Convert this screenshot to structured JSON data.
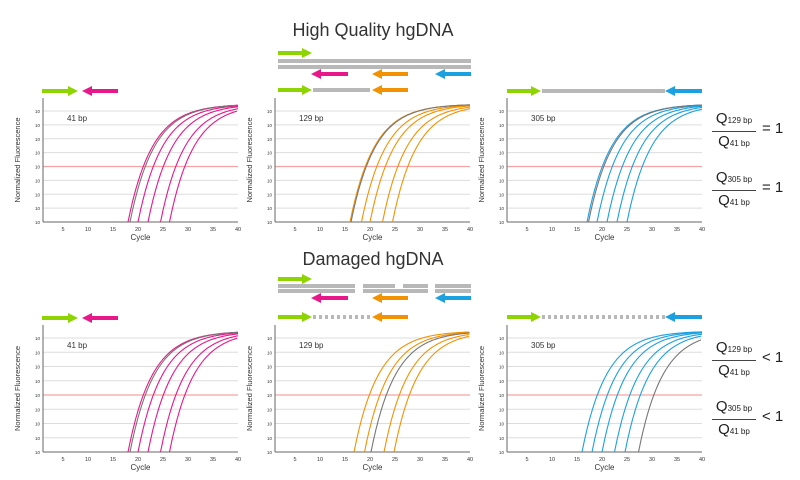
{
  "titles": {
    "top": "High Quality hgDNA",
    "bottom": "Damaged hgDNA"
  },
  "colors": {
    "forward": "#8ed400",
    "r41": "#e8178a",
    "r129": "#f39200",
    "r305": "#1ba1e2",
    "template": "#b8b8b8",
    "control": "#777777",
    "threshold": "#f5a3a3",
    "grid": "#dddddd"
  },
  "ratios": [
    {
      "num": "Q",
      "num_sub": "129 bp",
      "den": "Q",
      "den_sub": "41 bp",
      "relation": "= 1"
    },
    {
      "num": "Q",
      "num_sub": "305 bp",
      "den": "Q",
      "den_sub": "41 bp",
      "relation": "= 1"
    },
    {
      "num": "Q",
      "num_sub": "129 bp",
      "den": "Q",
      "den_sub": "41 bp",
      "relation": "< 1"
    },
    {
      "num": "Q",
      "num_sub": "305 bp",
      "den": "Q",
      "den_sub": "41 bp",
      "relation": "< 1"
    }
  ],
  "chart_data": [
    {
      "type": "line",
      "row": "High Quality hgDNA",
      "label": "41 bp",
      "series_color": "r41",
      "xlabel": "Cycle",
      "ylabel": "Normalized Fluorescence",
      "xlim": [
        1,
        40
      ],
      "x_ticks": [
        5,
        10,
        15,
        20,
        25,
        30,
        35,
        40
      ],
      "y_tick_labels": [
        "10",
        "10",
        "10",
        "10",
        "10",
        "10",
        "10",
        "10",
        "10"
      ],
      "threshold": true,
      "grid": true,
      "curves": [
        {
          "start_cycle": 18.0,
          "control": false
        },
        {
          "start_cycle": 18.4,
          "control": true
        },
        {
          "start_cycle": 20.0,
          "control": false
        },
        {
          "start_cycle": 22.0,
          "control": false
        },
        {
          "start_cycle": 24.5,
          "control": false
        },
        {
          "start_cycle": 26.3,
          "control": false
        }
      ]
    },
    {
      "type": "line",
      "row": "High Quality hgDNA",
      "label": "129 bp",
      "series_color": "r129",
      "xlabel": "Cycle",
      "ylabel": "Normalized Fluorescence",
      "xlim": [
        1,
        40
      ],
      "x_ticks": [
        5,
        10,
        15,
        20,
        25,
        30,
        35,
        40
      ],
      "y_tick_labels": [
        "10",
        "10",
        "10",
        "10",
        "10",
        "10",
        "10",
        "10",
        "10"
      ],
      "threshold": true,
      "grid": true,
      "curves": [
        {
          "start_cycle": 16.0,
          "control": false
        },
        {
          "start_cycle": 16.2,
          "control": true
        },
        {
          "start_cycle": 18.3,
          "control": false
        },
        {
          "start_cycle": 20.0,
          "control": false
        },
        {
          "start_cycle": 22.5,
          "control": false
        },
        {
          "start_cycle": 24.5,
          "control": false
        }
      ]
    },
    {
      "type": "line",
      "row": "High Quality hgDNA",
      "label": "305 bp",
      "series_color": "r305",
      "xlabel": "Cycle",
      "ylabel": "Normalized Fluorescence",
      "xlim": [
        1,
        40
      ],
      "x_ticks": [
        5,
        10,
        15,
        20,
        25,
        30,
        35,
        40
      ],
      "y_tick_labels": [
        "10",
        "10",
        "10",
        "10",
        "10",
        "10",
        "10",
        "10",
        "10"
      ],
      "threshold": true,
      "grid": true,
      "curves": [
        {
          "start_cycle": 17.0,
          "control": false
        },
        {
          "start_cycle": 17.3,
          "control": true
        },
        {
          "start_cycle": 19.0,
          "control": false
        },
        {
          "start_cycle": 21.0,
          "control": false
        },
        {
          "start_cycle": 23.0,
          "control": false
        },
        {
          "start_cycle": 25.0,
          "control": false
        }
      ]
    },
    {
      "type": "line",
      "row": "Damaged hgDNA",
      "label": "41 bp",
      "series_color": "r41",
      "xlabel": "Cycle",
      "ylabel": "Normalized Fluorescence",
      "xlim": [
        1,
        40
      ],
      "x_ticks": [
        5,
        10,
        15,
        20,
        25,
        30,
        35,
        40
      ],
      "y_tick_labels": [
        "10",
        "10",
        "10",
        "10",
        "10",
        "10",
        "10",
        "10",
        "10"
      ],
      "threshold": true,
      "grid": true,
      "curves": [
        {
          "start_cycle": 18.0,
          "control": false
        },
        {
          "start_cycle": 18.4,
          "control": true
        },
        {
          "start_cycle": 20.0,
          "control": false
        },
        {
          "start_cycle": 22.0,
          "control": false
        },
        {
          "start_cycle": 24.5,
          "control": false
        },
        {
          "start_cycle": 26.3,
          "control": false
        }
      ]
    },
    {
      "type": "line",
      "row": "Damaged hgDNA",
      "label": "129 bp",
      "series_color": "r129",
      "xlabel": "Cycle",
      "ylabel": "Normalized Fluorescence",
      "xlim": [
        1,
        40
      ],
      "x_ticks": [
        5,
        10,
        15,
        20,
        25,
        30,
        35,
        40
      ],
      "y_tick_labels": [
        "10",
        "10",
        "10",
        "10",
        "10",
        "10",
        "10",
        "10",
        "10"
      ],
      "threshold": true,
      "grid": true,
      "curves": [
        {
          "start_cycle": 16.8,
          "control": false
        },
        {
          "start_cycle": 18.9,
          "control": false
        },
        {
          "start_cycle": 20.2,
          "control": true
        },
        {
          "start_cycle": 22.8,
          "control": false
        },
        {
          "start_cycle": 24.8,
          "control": false
        }
      ]
    },
    {
      "type": "line",
      "row": "Damaged hgDNA",
      "label": "305 bp",
      "series_color": "r305",
      "xlabel": "Cycle",
      "ylabel": "Normalized Fluorescence",
      "xlim": [
        1,
        40
      ],
      "x_ticks": [
        5,
        10,
        15,
        20,
        25,
        30,
        35,
        40
      ],
      "y_tick_labels": [
        "10",
        "10",
        "10",
        "10",
        "10",
        "10",
        "10",
        "10",
        "10"
      ],
      "threshold": true,
      "grid": true,
      "curves": [
        {
          "start_cycle": 16.0,
          "control": false
        },
        {
          "start_cycle": 18.0,
          "control": false
        },
        {
          "start_cycle": 20.0,
          "control": false
        },
        {
          "start_cycle": 22.5,
          "control": false
        },
        {
          "start_cycle": 24.6,
          "control": false
        },
        {
          "start_cycle": 27.3,
          "control": true
        }
      ]
    }
  ]
}
